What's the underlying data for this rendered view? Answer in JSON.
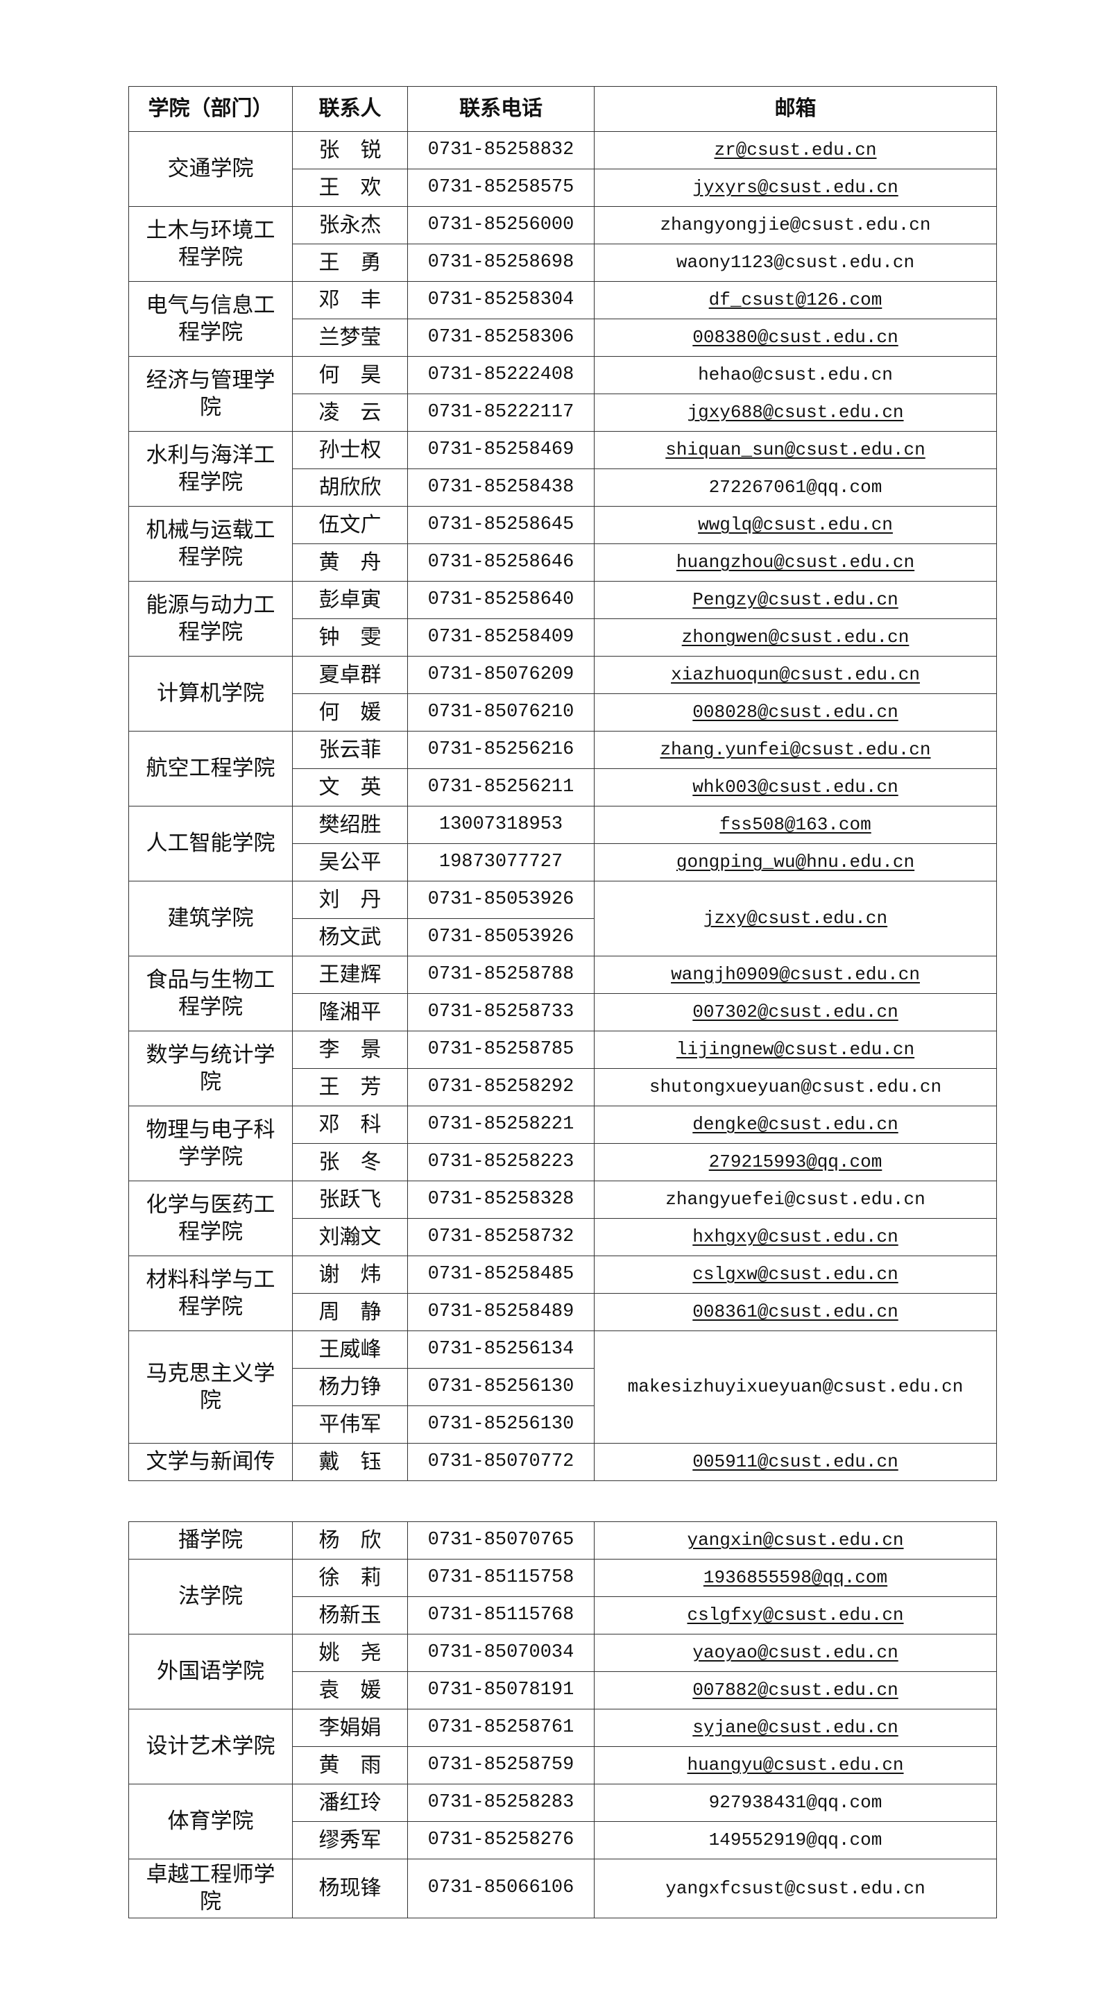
{
  "header": [
    "学院（部门）",
    "联系人",
    "联系电话",
    "邮箱"
  ],
  "tables": [
    {
      "groups": [
        {
          "college": "交通学院",
          "contacts": [
            {
              "name": "张　锐",
              "phone": "0731-85258832",
              "email": "zr@csust.edu.cn",
              "link": true
            },
            {
              "name": "王　欢",
              "phone": "0731-85258575",
              "email": "jyxyrs@csust.edu.cn",
              "link": true
            }
          ]
        },
        {
          "college": "土木与环境工程学院",
          "contacts": [
            {
              "name": "张永杰",
              "phone": "0731-85256000",
              "email": "zhangyongjie@csust.edu.cn",
              "link": false
            },
            {
              "name": "王　勇",
              "phone": "0731-85258698",
              "email": "waony1123@csust.edu.cn",
              "link": false
            }
          ]
        },
        {
          "college": "电气与信息工程学院",
          "contacts": [
            {
              "name": "邓　丰",
              "phone": "0731-85258304",
              "email": "df_csust@126.com",
              "link": true
            },
            {
              "name": "兰梦莹",
              "phone": "0731-85258306",
              "email": "008380@csust.edu.cn",
              "link": true
            }
          ]
        },
        {
          "college": "经济与管理学院",
          "contacts": [
            {
              "name": "何　昊",
              "phone": "0731-85222408",
              "email": "hehao@csust.edu.cn",
              "link": false
            },
            {
              "name": "凌　云",
              "phone": "0731-85222117",
              "email": "jgxy688@csust.edu.cn",
              "link": true
            }
          ]
        },
        {
          "college": "水利与海洋工程学院",
          "contacts": [
            {
              "name": "孙士权",
              "phone": "0731-85258469",
              "email": "shiquan_sun@csust.edu.cn",
              "link": true
            },
            {
              "name": "胡欣欣",
              "phone": "0731-85258438",
              "email": "272267061@qq.com",
              "link": false
            }
          ]
        },
        {
          "college": "机械与运载工程学院",
          "contacts": [
            {
              "name": "伍文广",
              "phone": "0731-85258645",
              "email": "wwglq@csust.edu.cn",
              "link": true
            },
            {
              "name": "黄　舟",
              "phone": "0731-85258646",
              "email": "huangzhou@csust.edu.cn",
              "link": true
            }
          ]
        },
        {
          "college": "能源与动力工程学院",
          "contacts": [
            {
              "name": "彭卓寅",
              "phone": "0731-85258640",
              "email": "Pengzy@csust.edu.cn",
              "link": true
            },
            {
              "name": "钟　雯",
              "phone": "0731-85258409",
              "email": "zhongwen@csust.edu.cn",
              "link": true
            }
          ]
        },
        {
          "college": "计算机学院",
          "contacts": [
            {
              "name": "夏卓群",
              "phone": "0731-85076209",
              "email": "xiazhuoqun@csust.edu.cn",
              "link": true
            },
            {
              "name": "何　媛",
              "phone": "0731-85076210",
              "email": "008028@csust.edu.cn",
              "link": true
            }
          ]
        },
        {
          "college": "航空工程学院",
          "contacts": [
            {
              "name": "张云菲",
              "phone": "0731-85256216",
              "email": "zhang.yunfei@csust.edu.cn",
              "link": true
            },
            {
              "name": "文　英",
              "phone": "0731-85256211",
              "email": "whk003@csust.edu.cn",
              "link": true
            }
          ]
        },
        {
          "college": "人工智能学院",
          "contacts": [
            {
              "name": "樊绍胜",
              "phone": "13007318953",
              "email": "fss508@163.com",
              "link": true
            },
            {
              "name": "吴公平",
              "phone": "19873077727",
              "email": "gongping_wu@hnu.edu.cn",
              "link": true
            }
          ]
        },
        {
          "college": "建筑学院",
          "shared_email": {
            "email": "jzxy@csust.edu.cn",
            "link": true
          },
          "contacts": [
            {
              "name": "刘　丹",
              "phone": "0731-85053926"
            },
            {
              "name": "杨文武",
              "phone": "0731-85053926"
            }
          ]
        },
        {
          "college": "食品与生物工程学院",
          "contacts": [
            {
              "name": "王建辉",
              "phone": "0731-85258788",
              "email": "wangjh0909@csust.edu.cn",
              "link": true
            },
            {
              "name": "隆湘平",
              "phone": "0731-85258733",
              "email": "007302@csust.edu.cn",
              "link": true
            }
          ]
        },
        {
          "college": "数学与统计学院",
          "contacts": [
            {
              "name": "李　景",
              "phone": "0731-85258785",
              "email": "lijingnew@csust.edu.cn",
              "link": true
            },
            {
              "name": "王　芳",
              "phone": "0731-85258292",
              "email": "shutongxueyuan@csust.edu.cn",
              "link": false
            }
          ]
        },
        {
          "college": "物理与电子科学学院",
          "contacts": [
            {
              "name": "邓　科",
              "phone": "0731-85258221",
              "email": "dengke@csust.edu.cn",
              "link": true
            },
            {
              "name": "张　冬",
              "phone": "0731-85258223",
              "email": "279215993@qq.com",
              "link": true
            }
          ]
        },
        {
          "college": "化学与医药工程学院",
          "contacts": [
            {
              "name": "张跃飞",
              "phone": "0731-85258328",
              "email": "zhangyuefei@csust.edu.cn",
              "link": false
            },
            {
              "name": "刘瀚文",
              "phone": "0731-85258732",
              "email": "hxhgxy@csust.edu.cn",
              "link": true
            }
          ]
        },
        {
          "college": "材料科学与工程学院",
          "contacts": [
            {
              "name": "谢　炜",
              "phone": "0731-85258485",
              "email": "cslgxw@csust.edu.cn",
              "link": true
            },
            {
              "name": "周　静",
              "phone": "0731-85258489",
              "email": "008361@csust.edu.cn",
              "link": true
            }
          ]
        },
        {
          "college": "马克思主义学院",
          "shared_email": {
            "email": "makesizhuyixueyuan@csust.edu.cn",
            "link": false
          },
          "contacts": [
            {
              "name": "王威峰",
              "phone": "0731-85256134"
            },
            {
              "name": "杨力铮",
              "phone": "0731-85256130"
            },
            {
              "name": "平伟军",
              "phone": "0731-85256130"
            }
          ]
        },
        {
          "college": "文学与新闻传",
          "contacts": [
            {
              "name": "戴　钰",
              "phone": "0731-85070772",
              "email": "005911@csust.edu.cn",
              "link": true
            }
          ]
        }
      ]
    },
    {
      "groups": [
        {
          "college": "播学院",
          "contacts": [
            {
              "name": "杨　欣",
              "phone": "0731-85070765",
              "email": "yangxin@csust.edu.cn",
              "link": true
            }
          ]
        },
        {
          "college": "法学院",
          "contacts": [
            {
              "name": "徐　莉",
              "phone": "0731-85115758",
              "email": "1936855598@qq.com",
              "link": true
            },
            {
              "name": "杨新玉",
              "phone": "0731-85115768",
              "email": "cslgfxy@csust.edu.cn",
              "link": true
            }
          ]
        },
        {
          "college": "外国语学院",
          "contacts": [
            {
              "name": "姚　尧",
              "phone": "0731-85070034",
              "email": "yaoyao@csust.edu.cn",
              "link": true
            },
            {
              "name": "袁　媛",
              "phone": "0731-85078191",
              "email": "007882@csust.edu.cn",
              "link": true
            }
          ]
        },
        {
          "college": "设计艺术学院",
          "contacts": [
            {
              "name": "李娟娟",
              "phone": "0731-85258761",
              "email": "syjane@csust.edu.cn",
              "link": true
            },
            {
              "name": "黄　雨",
              "phone": "0731-85258759",
              "email": "huangyu@csust.edu.cn",
              "link": true
            }
          ]
        },
        {
          "college": "体育学院",
          "contacts": [
            {
              "name": "潘红玲",
              "phone": "0731-85258283",
              "email": "927938431@qq.com",
              "link": false
            },
            {
              "name": "缪秀军",
              "phone": "0731-85258276",
              "email": "149552919@qq.com",
              "link": false
            }
          ]
        },
        {
          "college": "卓越工程师学院",
          "tall": true,
          "contacts": [
            {
              "name": "杨现锋",
              "phone": "0731-85066106",
              "email": "yangxfcsust@csust.edu.cn",
              "link": false
            }
          ]
        }
      ]
    }
  ]
}
